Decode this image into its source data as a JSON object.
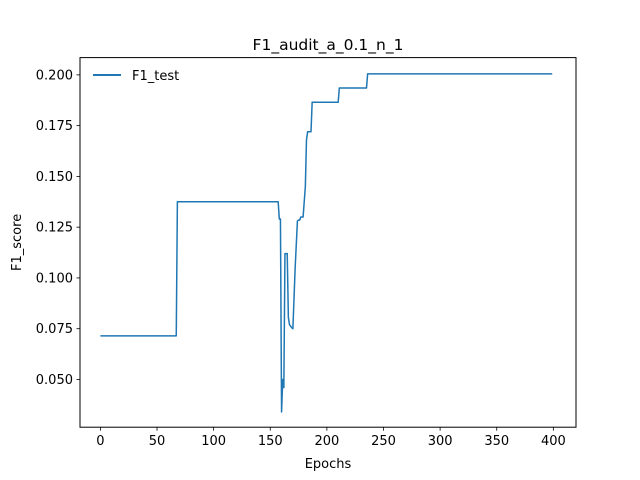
{
  "chart_data": {
    "type": "line",
    "title": "F1_audit_a_0.1_n_1",
    "xlabel": "Epochs",
    "ylabel": "F1_score",
    "xlim": [
      -18,
      420
    ],
    "ylim": [
      0.0265,
      0.2085
    ],
    "xticks": [
      0,
      50,
      100,
      150,
      200,
      250,
      300,
      350,
      400
    ],
    "yticks": [
      0.05,
      0.075,
      0.1,
      0.125,
      0.15,
      0.175,
      0.2
    ],
    "ytick_labels": [
      "0.050",
      "0.075",
      "0.100",
      "0.125",
      "0.150",
      "0.175",
      "0.200"
    ],
    "grid": false,
    "legend_position": "upper-left",
    "series": [
      {
        "name": "F1_test",
        "color": "#1f77b4",
        "points": [
          [
            0,
            0.0715
          ],
          [
            67,
            0.0715
          ],
          [
            68,
            0.1375
          ],
          [
            69,
            0.1375
          ],
          [
            157,
            0.1375
          ],
          [
            158,
            0.129
          ],
          [
            159,
            0.129
          ],
          [
            160,
            0.034
          ],
          [
            161,
            0.05
          ],
          [
            162,
            0.046
          ],
          [
            163,
            0.112
          ],
          [
            164,
            0.112
          ],
          [
            165,
            0.112
          ],
          [
            166,
            0.0805
          ],
          [
            167,
            0.077
          ],
          [
            169,
            0.0755
          ],
          [
            170,
            0.075
          ],
          [
            172,
            0.105
          ],
          [
            174,
            0.128
          ],
          [
            175,
            0.1285
          ],
          [
            176,
            0.1285
          ],
          [
            177,
            0.13
          ],
          [
            179,
            0.13
          ],
          [
            181,
            0.145
          ],
          [
            182,
            0.168
          ],
          [
            183,
            0.172
          ],
          [
            186,
            0.172
          ],
          [
            187,
            0.1865
          ],
          [
            210,
            0.1865
          ],
          [
            211,
            0.1935
          ],
          [
            235,
            0.1935
          ],
          [
            236,
            0.2005
          ],
          [
            399,
            0.2005
          ]
        ]
      }
    ]
  }
}
